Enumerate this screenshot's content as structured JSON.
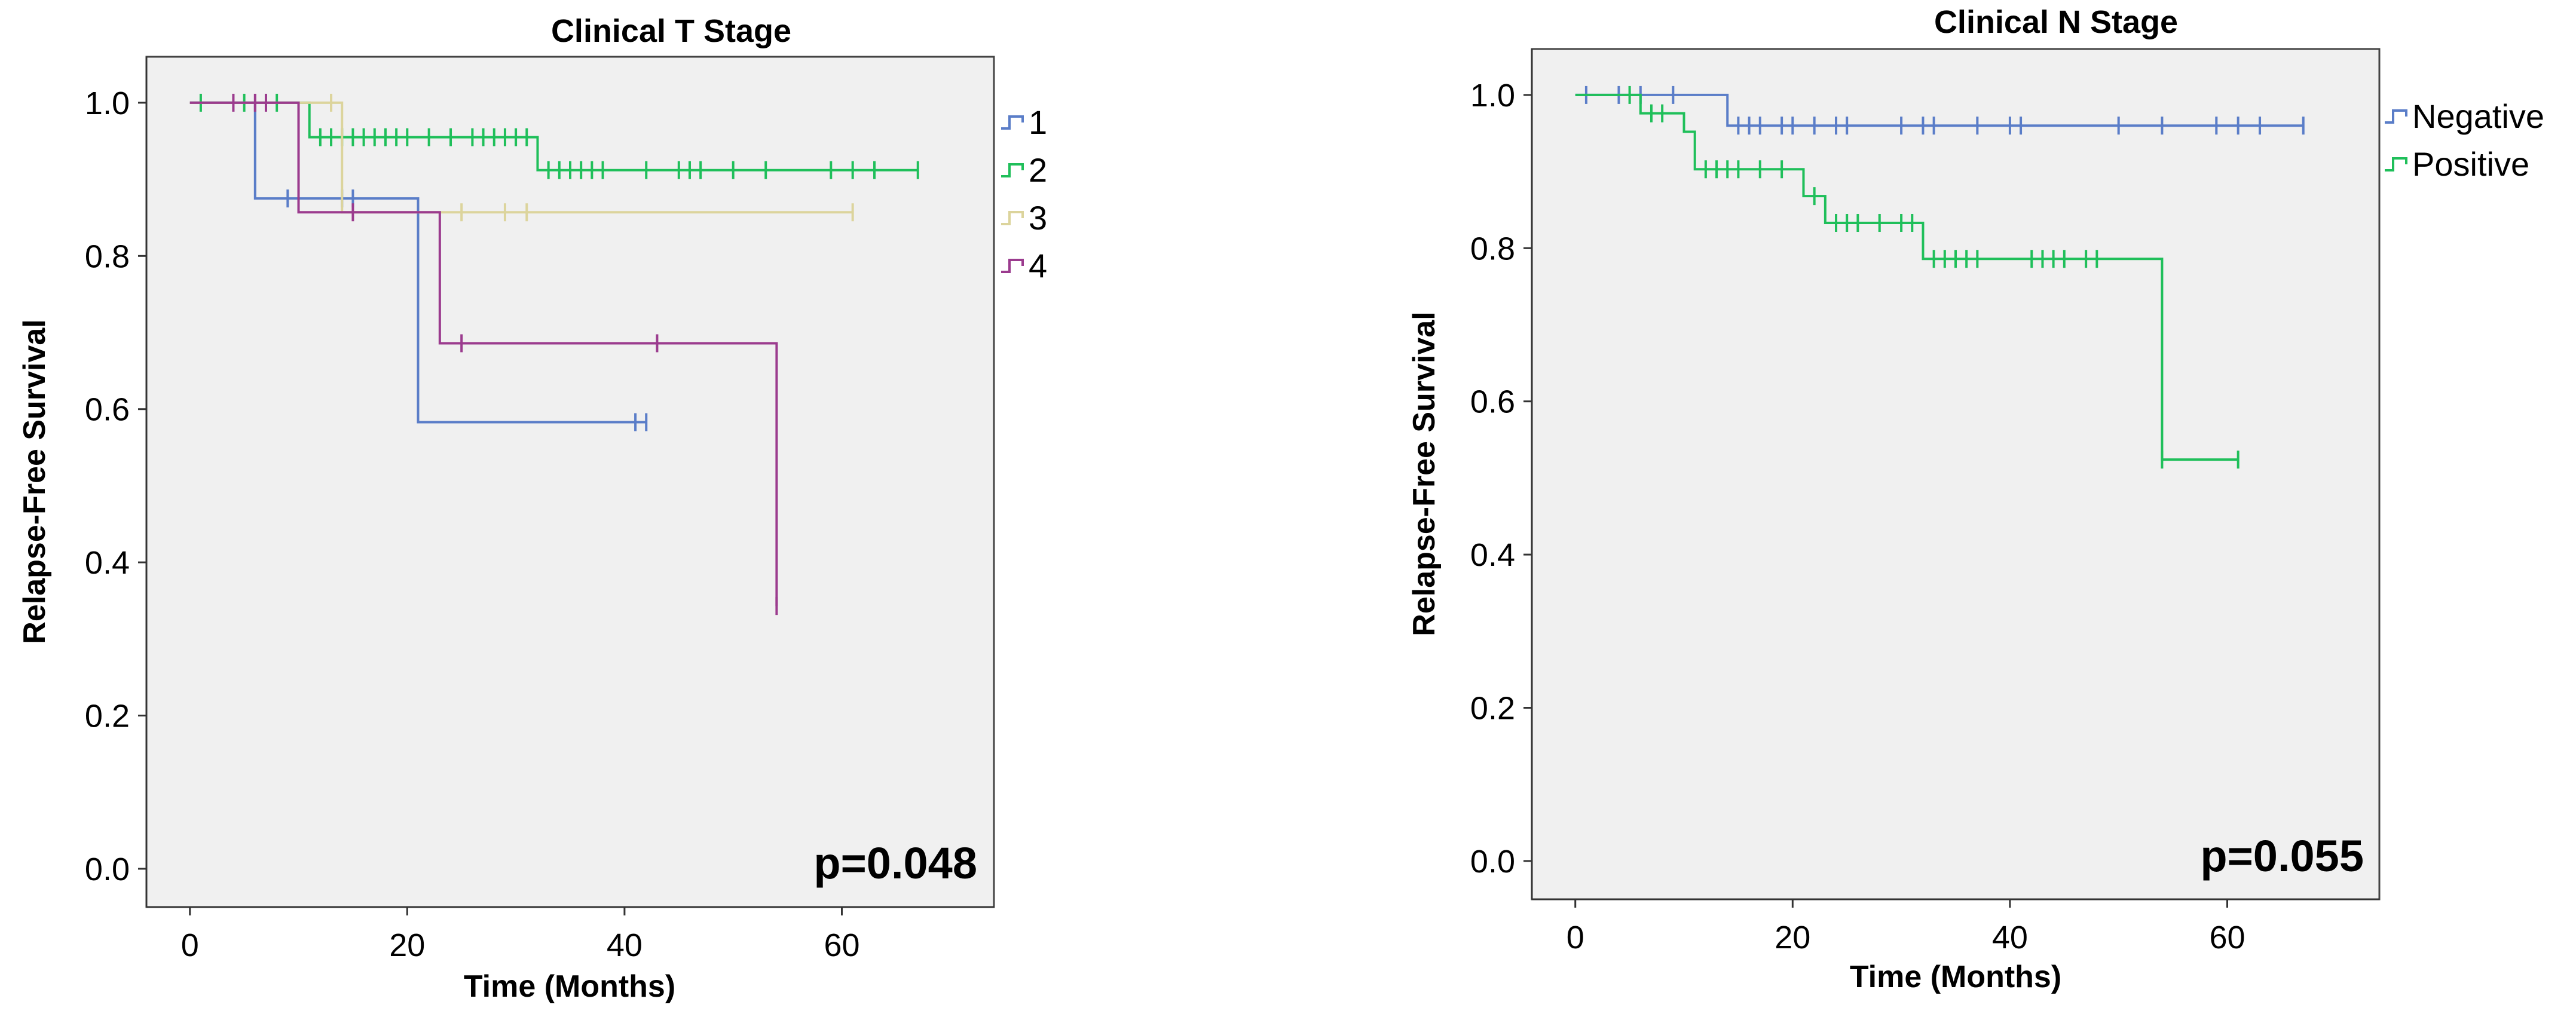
{
  "chart_data": [
    {
      "type": "line",
      "subtype": "kaplan-meier",
      "title": "Clinical T Stage",
      "xlabel": "Time (Months)",
      "ylabel": "Relapse-Free Survival",
      "xlim": [
        -4,
        74
      ],
      "ylim": [
        -0.05,
        1.06
      ],
      "x_ticks": [
        0,
        20,
        40,
        60
      ],
      "y_ticks": [
        0.0,
        0.2,
        0.4,
        0.6,
        0.8,
        1.0
      ],
      "x_tick_labels": [
        "0",
        "20",
        "40",
        "60"
      ],
      "y_tick_labels": [
        "0.0",
        "0.2",
        "0.4",
        "0.6",
        "0.8",
        "1.0"
      ],
      "p_value": "p=0.048",
      "legend_position": "right",
      "series": [
        {
          "name": "1",
          "color": "#5a7dc8",
          "x": [
            0,
            6,
            21,
            42
          ],
          "y": [
            1.0,
            0.875,
            0.583,
            0.583
          ],
          "censors": [
            [
              9,
              0.875
            ],
            [
              14,
              0.875
            ],
            [
              15,
              0.875
            ],
            [
              41,
              0.583
            ],
            [
              42,
              0.583
            ]
          ]
        },
        {
          "name": "2",
          "color": "#1fbf5a",
          "x": [
            0,
            11,
            32,
            67
          ],
          "y": [
            1.0,
            0.955,
            0.912,
            0.912
          ],
          "censors": [
            [
              1,
              1.0
            ],
            [
              5,
              1.0
            ],
            [
              8,
              1.0
            ],
            [
              12,
              0.955
            ],
            [
              13,
              0.955
            ],
            [
              14,
              0.955
            ],
            [
              15,
              0.955
            ],
            [
              16,
              0.955
            ],
            [
              17,
              0.955
            ],
            [
              18,
              0.955
            ],
            [
              19,
              0.955
            ],
            [
              20,
              0.955
            ],
            [
              22,
              0.955
            ],
            [
              24,
              0.955
            ],
            [
              26,
              0.955
            ],
            [
              27,
              0.955
            ],
            [
              28,
              0.955
            ],
            [
              29,
              0.955
            ],
            [
              30,
              0.955
            ],
            [
              31,
              0.955
            ],
            [
              33,
              0.912
            ],
            [
              34,
              0.912
            ],
            [
              35,
              0.912
            ],
            [
              36,
              0.912
            ],
            [
              37,
              0.912
            ],
            [
              38,
              0.912
            ],
            [
              42,
              0.912
            ],
            [
              45,
              0.912
            ],
            [
              46,
              0.912
            ],
            [
              47,
              0.912
            ],
            [
              50,
              0.912
            ],
            [
              53,
              0.912
            ],
            [
              59,
              0.912
            ],
            [
              61,
              0.912
            ],
            [
              63,
              0.912
            ],
            [
              67,
              0.912
            ]
          ]
        },
        {
          "name": "3",
          "color": "#dcd49c",
          "x": [
            0,
            14,
            61
          ],
          "y": [
            1.0,
            0.857,
            0.857
          ],
          "censors": [
            [
              13,
              1.0
            ],
            [
              25,
              0.857
            ],
            [
              29,
              0.857
            ],
            [
              31,
              0.857
            ],
            [
              61,
              0.857
            ]
          ]
        },
        {
          "name": "4",
          "color": "#9b3b8e",
          "x": [
            0,
            10,
            23,
            54
          ],
          "y": [
            1.0,
            0.857,
            0.686,
            0.343
          ],
          "censors": [
            [
              4,
              1.0
            ],
            [
              6,
              1.0
            ],
            [
              7,
              1.0
            ],
            [
              15,
              0.857
            ],
            [
              25,
              0.686
            ],
            [
              43,
              0.686
            ],
            [
              54,
              0.343
            ]
          ]
        }
      ]
    },
    {
      "type": "line",
      "subtype": "kaplan-meier",
      "title": "Clinical N Stage",
      "xlabel": "Time (Months)",
      "ylabel": "Relapse-Free Survival",
      "xlim": [
        -4,
        74
      ],
      "ylim": [
        -0.05,
        1.06
      ],
      "x_ticks": [
        0,
        20,
        40,
        60
      ],
      "y_ticks": [
        0.0,
        0.2,
        0.4,
        0.6,
        0.8,
        1.0
      ],
      "x_tick_labels": [
        "0",
        "20",
        "40",
        "60"
      ],
      "y_tick_labels": [
        "0.0",
        "0.2",
        "0.4",
        "0.6",
        "0.8",
        "1.0"
      ],
      "p_value": "p=0.055",
      "legend_position": "right",
      "series": [
        {
          "name": "Negative",
          "color": "#5a7dc8",
          "x": [
            0,
            14,
            67
          ],
          "y": [
            1.0,
            0.96,
            0.96
          ],
          "censors": [
            [
              1,
              1.0
            ],
            [
              4,
              1.0
            ],
            [
              6,
              1.0
            ],
            [
              9,
              1.0
            ],
            [
              15,
              0.96
            ],
            [
              16,
              0.96
            ],
            [
              17,
              0.96
            ],
            [
              19,
              0.96
            ],
            [
              20,
              0.96
            ],
            [
              22,
              0.96
            ],
            [
              24,
              0.96
            ],
            [
              25,
              0.96
            ],
            [
              30,
              0.96
            ],
            [
              32,
              0.96
            ],
            [
              33,
              0.96
            ],
            [
              37,
              0.96
            ],
            [
              40,
              0.96
            ],
            [
              41,
              0.96
            ],
            [
              50,
              0.96
            ],
            [
              54,
              0.96
            ],
            [
              59,
              0.96
            ],
            [
              61,
              0.96
            ],
            [
              63,
              0.96
            ],
            [
              67,
              0.96
            ]
          ]
        },
        {
          "name": "Positive",
          "color": "#1fbf5a",
          "x": [
            0,
            6,
            10,
            11,
            21,
            23,
            32,
            54,
            61
          ],
          "y": [
            1.0,
            0.976,
            0.952,
            0.903,
            0.868,
            0.833,
            0.786,
            0.524,
            0.524
          ],
          "censors": [
            [
              5,
              1.0
            ],
            [
              7,
              0.976
            ],
            [
              8,
              0.976
            ],
            [
              12,
              0.903
            ],
            [
              13,
              0.903
            ],
            [
              14,
              0.903
            ],
            [
              15,
              0.903
            ],
            [
              17,
              0.903
            ],
            [
              19,
              0.903
            ],
            [
              22,
              0.868
            ],
            [
              24,
              0.833
            ],
            [
              25,
              0.833
            ],
            [
              26,
              0.833
            ],
            [
              28,
              0.833
            ],
            [
              30,
              0.833
            ],
            [
              31,
              0.833
            ],
            [
              33,
              0.786
            ],
            [
              34,
              0.786
            ],
            [
              35,
              0.786
            ],
            [
              36,
              0.786
            ],
            [
              37,
              0.786
            ],
            [
              42,
              0.786
            ],
            [
              43,
              0.786
            ],
            [
              44,
              0.786
            ],
            [
              45,
              0.786
            ],
            [
              47,
              0.786
            ],
            [
              48,
              0.786
            ],
            [
              54,
              0.524
            ],
            [
              61,
              0.524
            ]
          ]
        }
      ]
    }
  ]
}
